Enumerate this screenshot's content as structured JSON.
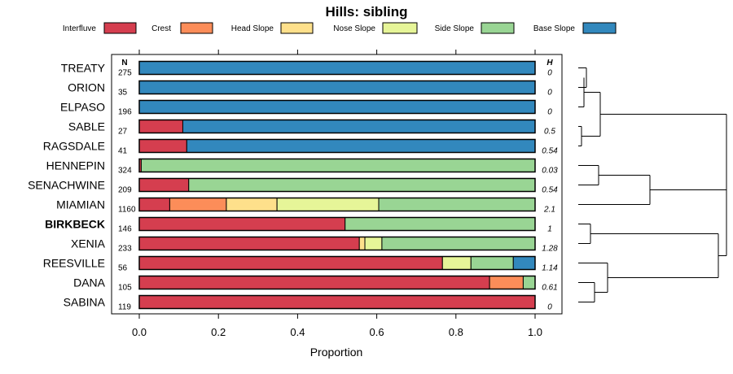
{
  "chart_data": {
    "type": "bar",
    "orientation": "horizontal",
    "stacked": true,
    "title": "Hills: sibling",
    "xlabel": "Proportion",
    "ylabel": "",
    "xlim": [
      0,
      1
    ],
    "x_ticks": [
      "0.0",
      "0.2",
      "0.4",
      "0.6",
      "0.8",
      "1.0"
    ],
    "n_header": "N",
    "h_header": "H",
    "highlight": "BIRKBECK",
    "legend_position": "top",
    "legend": [
      {
        "name": "Interfluve",
        "color": "#d53e4f"
      },
      {
        "name": "Crest",
        "color": "#fc8d59"
      },
      {
        "name": "Head Slope",
        "color": "#fee08b"
      },
      {
        "name": "Nose Slope",
        "color": "#e6f598"
      },
      {
        "name": "Side Slope",
        "color": "#99d594"
      },
      {
        "name": "Base Slope",
        "color": "#3288bd"
      }
    ],
    "categories": [
      "TREATY",
      "ORION",
      "ELPASO",
      "SABLE",
      "RAGSDALE",
      "HENNEPIN",
      "SENACHWINE",
      "MIAMIAN",
      "BIRKBECK",
      "XENIA",
      "REESVILLE",
      "DANA",
      "SABINA"
    ],
    "n_values": [
      "275",
      "35",
      "196",
      "27",
      "41",
      "324",
      "209",
      "1160",
      "146",
      "233",
      "56",
      "105",
      "119"
    ],
    "h_values": [
      "0",
      "0",
      "0",
      "0.5",
      "0.54",
      "0.03",
      "0.54",
      "2.1",
      "1",
      "1.28",
      "1.14",
      "0.61",
      "0"
    ],
    "series": [
      {
        "name": "Interfluve",
        "values": [
          0,
          0,
          0,
          0.11,
          0.12,
          0.005,
          0.125,
          0.077,
          0.52,
          0.556,
          0.766,
          0.885,
          1.0
        ]
      },
      {
        "name": "Crest",
        "values": [
          0,
          0,
          0,
          0,
          0,
          0,
          0,
          0.143,
          0,
          0,
          0,
          0.085,
          0
        ]
      },
      {
        "name": "Head Slope",
        "values": [
          0,
          0,
          0,
          0,
          0,
          0,
          0,
          0.128,
          0,
          0.014,
          0,
          0,
          0
        ]
      },
      {
        "name": "Nose Slope",
        "values": [
          0,
          0,
          0,
          0,
          0,
          0,
          0,
          0.257,
          0,
          0.043,
          0.072,
          0,
          0
        ]
      },
      {
        "name": "Side Slope",
        "values": [
          0,
          0,
          0,
          0,
          0,
          0.995,
          0.875,
          0.395,
          0.48,
          0.387,
          0.107,
          0.03,
          0
        ]
      },
      {
        "name": "Base Slope",
        "values": [
          1.0,
          1.0,
          1.0,
          0.89,
          0.88,
          0,
          0,
          0,
          0,
          0,
          0.055,
          0,
          0
        ]
      }
    ]
  }
}
